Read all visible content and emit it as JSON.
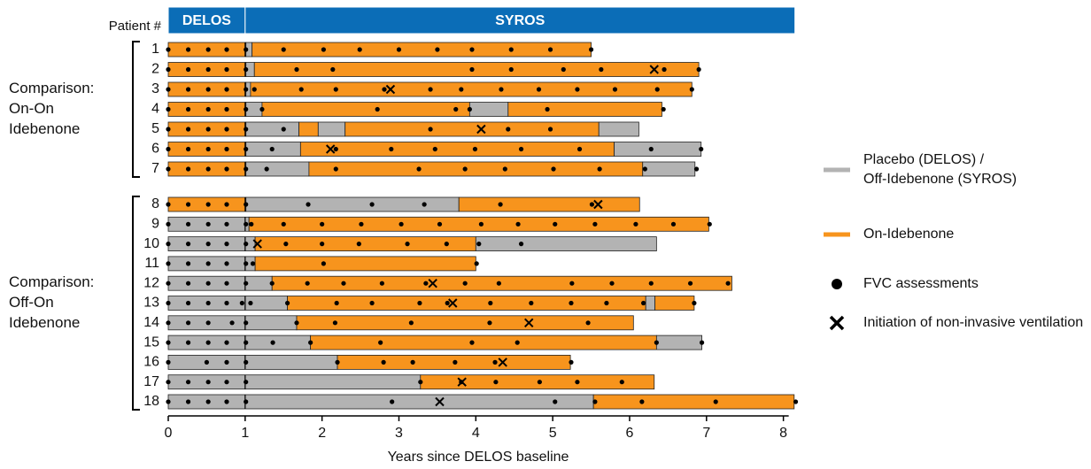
{
  "chart_data": {
    "type": "swimmer",
    "y_label": "Patient #",
    "x_label": "Years since DELOS baseline",
    "xlim": [
      0,
      8.2
    ],
    "xticks": [
      0,
      1,
      2,
      3,
      4,
      5,
      6,
      7,
      8
    ],
    "phases": [
      {
        "name": "DELOS",
        "start": 0,
        "end": 1
      },
      {
        "name": "SYROS",
        "start": 1,
        "end": 8.15
      }
    ],
    "phase_color": "#0b6db7",
    "states": [
      {
        "name_lines": [
          "Placebo (DELOS) /",
          "Off-Idebenone (SYROS)"
        ],
        "color": "#b3b3b3"
      },
      {
        "name_lines": [
          "On-Idebenone"
        ],
        "color": "#f7941d"
      }
    ],
    "markers": {
      "fvc": "FVC assessments",
      "niv": "Initiation of non-invasive ventilation"
    },
    "groups": [
      {
        "label_lines": [
          "Comparison:",
          "On-On",
          "Idebenone"
        ],
        "patients": [
          {
            "id": "1",
            "segments": [
              [
                1,
                0,
                1.01
              ],
              [
                0,
                1.01,
                1.09
              ],
              [
                1,
                1.09,
                5.5
              ]
            ],
            "fvc": [
              0,
              0.26,
              0.52,
              0.76,
              1.01,
              1.5,
              2.02,
              2.49,
              3.0,
              3.5,
              3.95,
              4.46,
              4.97,
              5.5
            ]
          },
          {
            "id": "2",
            "segments": [
              [
                1,
                0,
                1.01
              ],
              [
                0,
                1.01,
                1.12
              ],
              [
                1,
                1.12,
                6.9
              ]
            ],
            "fvc": [
              0,
              0.26,
              0.52,
              0.76,
              1.01,
              1.67,
              2.14,
              3.95,
              4.46,
              5.14,
              5.63,
              6.45,
              6.9
            ],
            "niv": 6.32
          },
          {
            "id": "3",
            "segments": [
              [
                1,
                0,
                1.01
              ],
              [
                0,
                1.01,
                1.07
              ],
              [
                1,
                1.07,
                6.81
              ]
            ],
            "fvc": [
              0,
              0.26,
              0.52,
              0.76,
              1.01,
              1.12,
              1.73,
              2.18,
              2.81,
              3.41,
              3.81,
              4.33,
              4.82,
              5.32,
              5.81,
              6.36,
              6.81
            ],
            "niv": 2.89
          },
          {
            "id": "4",
            "segments": [
              [
                1,
                0,
                1.01
              ],
              [
                0,
                1.01,
                1.22
              ],
              [
                1,
                1.22,
                3.92
              ],
              [
                0,
                3.92,
                4.42
              ],
              [
                1,
                4.42,
                6.42
              ]
            ],
            "fvc": [
              0,
              0.26,
              0.52,
              0.76,
              1.01,
              1.22,
              2.72,
              3.74,
              3.92,
              4.93,
              6.44
            ]
          },
          {
            "id": "5",
            "segments": [
              [
                1,
                0,
                1.01
              ],
              [
                0,
                1.01,
                1.7
              ],
              [
                1,
                1.7,
                1.95
              ],
              [
                0,
                1.95,
                2.3
              ],
              [
                1,
                2.3,
                5.6
              ],
              [
                0,
                5.6,
                6.12
              ]
            ],
            "fvc": [
              0,
              0.26,
              0.52,
              0.76,
              1.01,
              1.5,
              3.41,
              4.42,
              4.97
            ],
            "niv": 4.07
          },
          {
            "id": "6",
            "segments": [
              [
                1,
                0,
                1.01
              ],
              [
                0,
                1.01,
                1.72
              ],
              [
                1,
                1.72,
                5.8
              ],
              [
                0,
                5.8,
                6.93
              ]
            ],
            "fvc": [
              0,
              0.26,
              0.52,
              0.76,
              1.01,
              1.35,
              2.18,
              2.9,
              3.47,
              3.99,
              4.59,
              5.35,
              6.28,
              6.93
            ],
            "niv": 2.11
          },
          {
            "id": "7",
            "segments": [
              [
                1,
                0,
                1.01
              ],
              [
                0,
                1.01,
                1.83
              ],
              [
                1,
                1.83,
                6.17
              ],
              [
                0,
                6.17,
                6.85
              ]
            ],
            "fvc": [
              0,
              0.26,
              0.52,
              0.76,
              1.01,
              1.28,
              2.18,
              3.26,
              3.86,
              4.38,
              5.01,
              5.61,
              6.2,
              6.87
            ]
          }
        ]
      },
      {
        "label_lines": [
          "Comparison:",
          "Off-On",
          "Idebenone"
        ],
        "patients": [
          {
            "id": "8",
            "segments": [
              [
                1,
                0,
                1.01
              ],
              [
                0,
                1.01,
                3.78
              ],
              [
                1,
                3.78,
                6.13
              ]
            ],
            "fvc": [
              0,
              0.26,
              0.52,
              0.76,
              1.01,
              1.82,
              2.65,
              3.33,
              4.32,
              5.51
            ],
            "niv": 5.59
          },
          {
            "id": "9",
            "segments": [
              [
                0,
                0,
                1.05
              ],
              [
                1,
                1.05,
                7.03
              ]
            ],
            "fvc": [
              0,
              0.26,
              0.52,
              0.76,
              1.01,
              1.08,
              1.5,
              2.0,
              2.51,
              3.03,
              3.53,
              4.07,
              4.55,
              5.03,
              5.55,
              6.08,
              6.57,
              7.04
            ]
          },
          {
            "id": "10",
            "segments": [
              [
                0,
                0,
                1.13
              ],
              [
                1,
                1.13,
                4.0
              ],
              [
                0,
                4.0,
                6.35
              ]
            ],
            "fvc": [
              0,
              0.26,
              0.52,
              0.76,
              1.01,
              1.53,
              2.0,
              2.48,
              3.11,
              3.62,
              4.04,
              4.59
            ],
            "niv": 1.16
          },
          {
            "id": "11",
            "segments": [
              [
                0,
                0,
                1.13
              ],
              [
                1,
                1.13,
                4.0
              ]
            ],
            "fvc": [
              0,
              0.26,
              0.52,
              0.76,
              1.01,
              1.1,
              2.02,
              4.01
            ]
          },
          {
            "id": "12",
            "segments": [
              [
                0,
                0,
                1.35
              ],
              [
                1,
                1.35,
                7.33
              ]
            ],
            "fvc": [
              0,
              0.26,
              0.52,
              0.76,
              1.01,
              1.35,
              1.81,
              2.28,
              2.78,
              3.35,
              3.86,
              4.3,
              5.25,
              5.77,
              6.28,
              6.79,
              7.28
            ],
            "niv": 3.44
          },
          {
            "id": "13",
            "segments": [
              [
                0,
                0,
                1.55
              ],
              [
                1,
                1.55,
                6.21
              ],
              [
                0,
                6.21,
                6.33
              ],
              [
                1,
                6.33,
                6.84
              ]
            ],
            "fvc": [
              0,
              0.26,
              0.52,
              0.76,
              0.96,
              1.07,
              1.55,
              2.19,
              2.65,
              3.27,
              3.63,
              4.19,
              4.72,
              5.24,
              5.7,
              6.18,
              6.84
            ],
            "niv": 3.7
          },
          {
            "id": "14",
            "segments": [
              [
                0,
                0,
                1.67
              ],
              [
                1,
                1.67,
                6.05
              ]
            ],
            "fvc": [
              0,
              0.26,
              0.52,
              0.83,
              1.01,
              1.67,
              2.17,
              3.16,
              4.18,
              5.46
            ],
            "niv": 4.69
          },
          {
            "id": "15",
            "segments": [
              [
                0,
                0,
                1.85
              ],
              [
                1,
                1.85,
                6.35
              ],
              [
                0,
                6.35,
                6.94
              ]
            ],
            "fvc": [
              0,
              0.26,
              0.52,
              0.76,
              1.01,
              1.36,
              1.85,
              2.76,
              3.95,
              4.54,
              6.35,
              6.94
            ]
          },
          {
            "id": "16",
            "segments": [
              [
                0,
                0,
                2.2
              ],
              [
                1,
                2.2,
                5.23
              ]
            ],
            "fvc": [
              0,
              0.5,
              0.76,
              1.01,
              2.2,
              2.8,
              3.18,
              3.73,
              4.25,
              5.24
            ],
            "niv": 4.35
          },
          {
            "id": "17",
            "segments": [
              [
                0,
                0,
                3.28
              ],
              [
                1,
                3.28,
                6.32
              ]
            ],
            "fvc": [
              0,
              0.26,
              0.52,
              0.76,
              1.01,
              3.28,
              3.81,
              4.26,
              4.83,
              5.32,
              5.9
            ],
            "niv": 3.82
          },
          {
            "id": "18",
            "segments": [
              [
                0,
                0,
                5.53
              ],
              [
                1,
                5.53,
                8.14
              ]
            ],
            "fvc": [
              0,
              0.26,
              0.52,
              0.76,
              1.01,
              2.91,
              5.03,
              5.55,
              6.16,
              7.12,
              8.16
            ],
            "niv": 3.53
          }
        ]
      }
    ]
  }
}
